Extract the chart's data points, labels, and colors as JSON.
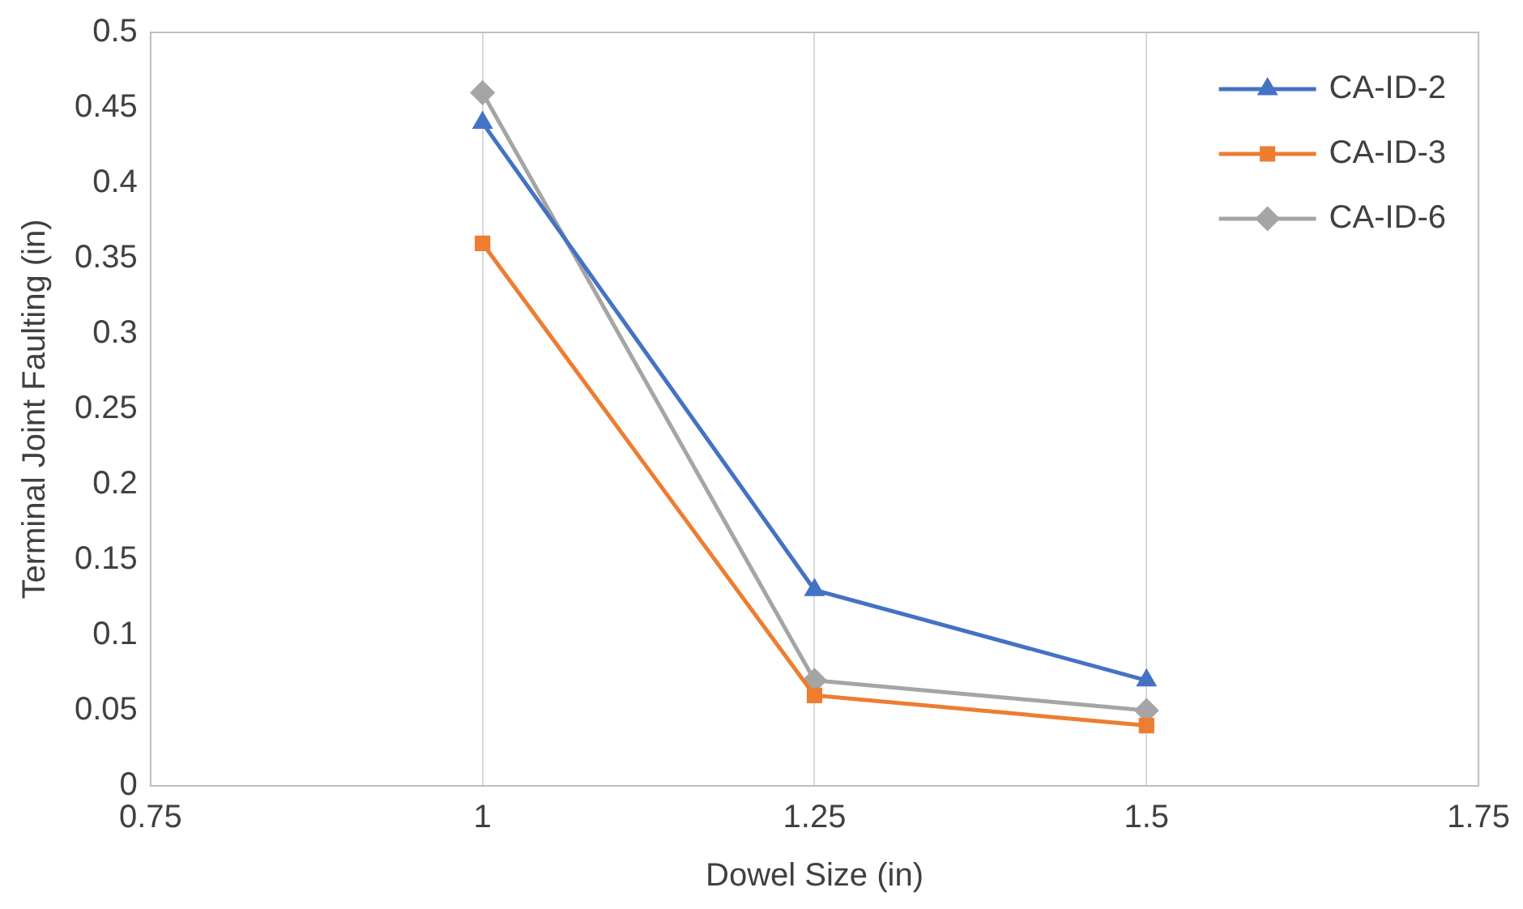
{
  "chart_data": {
    "type": "line",
    "xlabel": "Dowel Size (in)",
    "ylabel": "Terminal Joint Faulting (in)",
    "x": [
      1,
      1.25,
      1.5
    ],
    "series": [
      {
        "name": "CA-ID-2",
        "color": "#4472c4",
        "marker": "triangle",
        "values": [
          0.44,
          0.13,
          0.07
        ]
      },
      {
        "name": "CA-ID-3",
        "color": "#ed7d31",
        "marker": "square",
        "values": [
          0.36,
          0.06,
          0.04
        ]
      },
      {
        "name": "CA-ID-6",
        "color": "#a5a5a5",
        "marker": "diamond",
        "values": [
          0.46,
          0.07,
          0.05
        ]
      }
    ],
    "xlim": [
      0.75,
      1.75
    ],
    "xticks": [
      0.75,
      1,
      1.25,
      1.5,
      1.75
    ],
    "ylim": [
      0,
      0.5
    ],
    "yticks": [
      0,
      0.05,
      0.1,
      0.15,
      0.2,
      0.25,
      0.3,
      0.35,
      0.4,
      0.45,
      0.5
    ],
    "grid": "x",
    "legend": "top right",
    "line_style": "solid"
  }
}
